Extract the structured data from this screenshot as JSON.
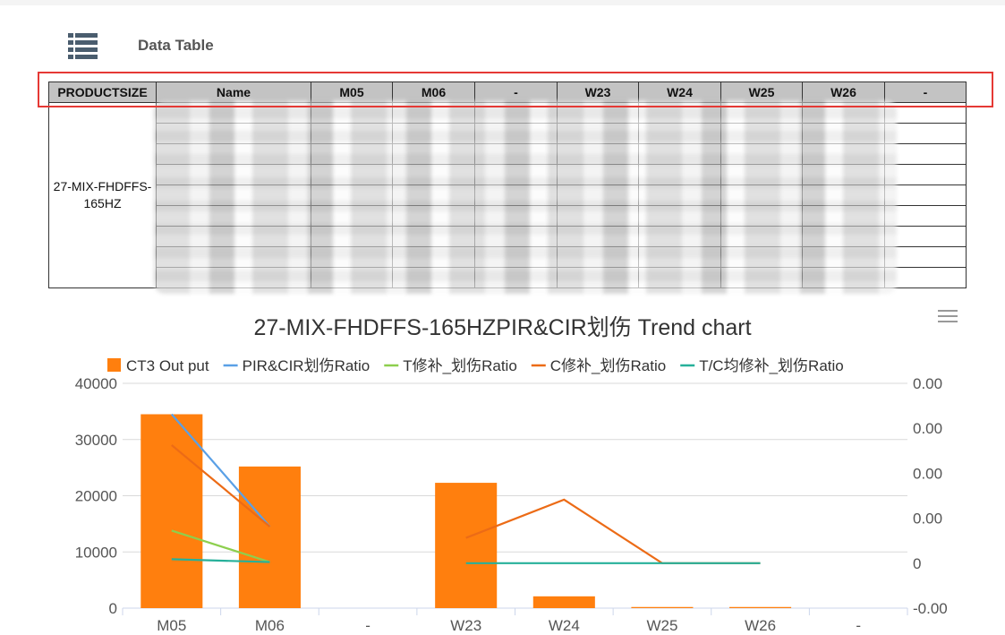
{
  "header": {
    "title": "Data Table"
  },
  "table": {
    "columns": [
      "PRODUCTSIZE",
      "Name",
      "M05",
      "M06",
      "-",
      "W23",
      "W24",
      "W25",
      "W26",
      "-"
    ],
    "product_size": "27-MIX-FHDFFS-165HZ"
  },
  "chart_data": {
    "type": "bar",
    "title": "27-MIX-FHDFFS-165HZPIR&CIR划伤 Trend chart",
    "categories": [
      "M05",
      "M06",
      "-",
      "W23",
      "W24",
      "W25",
      "W26",
      "-"
    ],
    "ylim": [
      0,
      40000
    ],
    "y_ticks": [
      "0",
      "10000",
      "20000",
      "30000",
      "40000"
    ],
    "y2_ticks": [
      "-0.00",
      "0",
      "0.00",
      "0.00",
      "0.00",
      "0.00"
    ],
    "legend_position": "top",
    "series": [
      {
        "name": "CT3 Out put",
        "kind": "bar",
        "color": "#ff7f0e",
        "values": [
          34500,
          25200,
          null,
          22300,
          2100,
          200,
          200,
          null
        ]
      },
      {
        "name": "PIR&CIR划伤Ratio",
        "kind": "line",
        "color": "#5aa0e6",
        "values": [
          34500,
          14500,
          null,
          null,
          null,
          null,
          null,
          null
        ]
      },
      {
        "name": "T修补_划伤Ratio",
        "kind": "line",
        "color": "#8dcf4e",
        "values": [
          13800,
          8200,
          null,
          null,
          null,
          null,
          null,
          null
        ]
      },
      {
        "name": "C修补_划伤Ratio",
        "kind": "line",
        "color": "#ec6b16",
        "values": [
          29000,
          14500,
          null,
          12500,
          19300,
          8000,
          8000,
          null
        ]
      },
      {
        "name": "T/C均修补_划伤Ratio",
        "kind": "line",
        "color": "#26b09a",
        "values": [
          8700,
          8200,
          null,
          8000,
          8000,
          8000,
          8000,
          null
        ]
      }
    ]
  }
}
